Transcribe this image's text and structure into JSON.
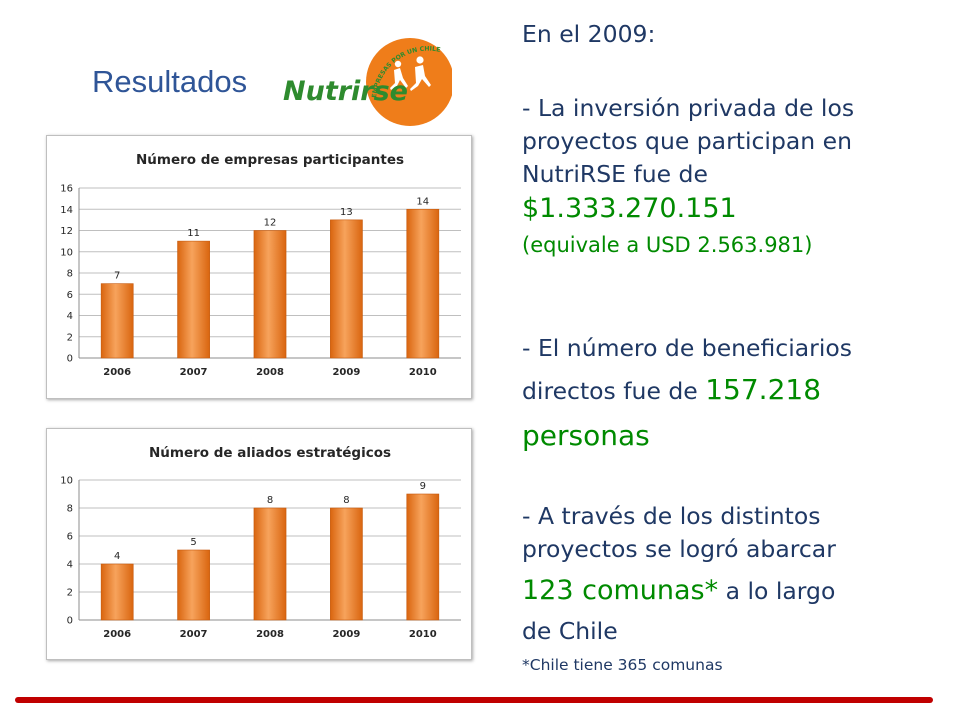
{
  "header": {
    "title": "Resultados",
    "logo_text": "Nutrirse",
    "logo_arc_text": "EMPRESAS POR UN CHILE SANO Y ACTIVO"
  },
  "summary": {
    "heading": "En el 2009:",
    "investment": {
      "line1": "- La inversión privada de los",
      "line2": "proyectos que participan en",
      "line3": "NutriRSE fue de",
      "amount": "$1.333.270.151",
      "usd": "(equivale a USD 2.563.981)"
    },
    "beneficiaries": {
      "line1": "- El número de beneficiarios",
      "line2_prefix": "directos fue de ",
      "count": "157.218",
      "count_unit": "personas"
    },
    "communes": {
      "line1": "- A través de los distintos",
      "line2": "proyectos se logró abarcar",
      "count": "123 comunas*",
      "suffix": " a lo largo",
      "line4": "de Chile",
      "footnote": "*Chile tiene 365 comunas"
    }
  },
  "colors": {
    "bar": "#ec7a1c",
    "bar_light": "#f7a35c",
    "title_blue": "#2f5597",
    "text_navy": "#1f3864",
    "highlight_green": "#008a00",
    "bottom_bar": "#c00000",
    "logo_orange": "#ef7d1a",
    "logo_green": "#2e8b2e"
  },
  "chart_data": [
    {
      "type": "bar",
      "title": "Número de empresas participantes",
      "categories": [
        "2006",
        "2007",
        "2008",
        "2009",
        "2010"
      ],
      "values": [
        7,
        11,
        12,
        13,
        14
      ],
      "ylim": [
        0,
        16
      ],
      "yticks": [
        0,
        2,
        4,
        6,
        8,
        10,
        12,
        14,
        16
      ],
      "grid": true,
      "legend": "none"
    },
    {
      "type": "bar",
      "title": "Número de aliados estratégicos",
      "categories": [
        "2006",
        "2007",
        "2008",
        "2009",
        "2010"
      ],
      "values": [
        4,
        5,
        8,
        8,
        9
      ],
      "ylim": [
        0,
        10
      ],
      "yticks": [
        0,
        2,
        4,
        6,
        8,
        10
      ],
      "grid": true,
      "legend": "none"
    }
  ]
}
